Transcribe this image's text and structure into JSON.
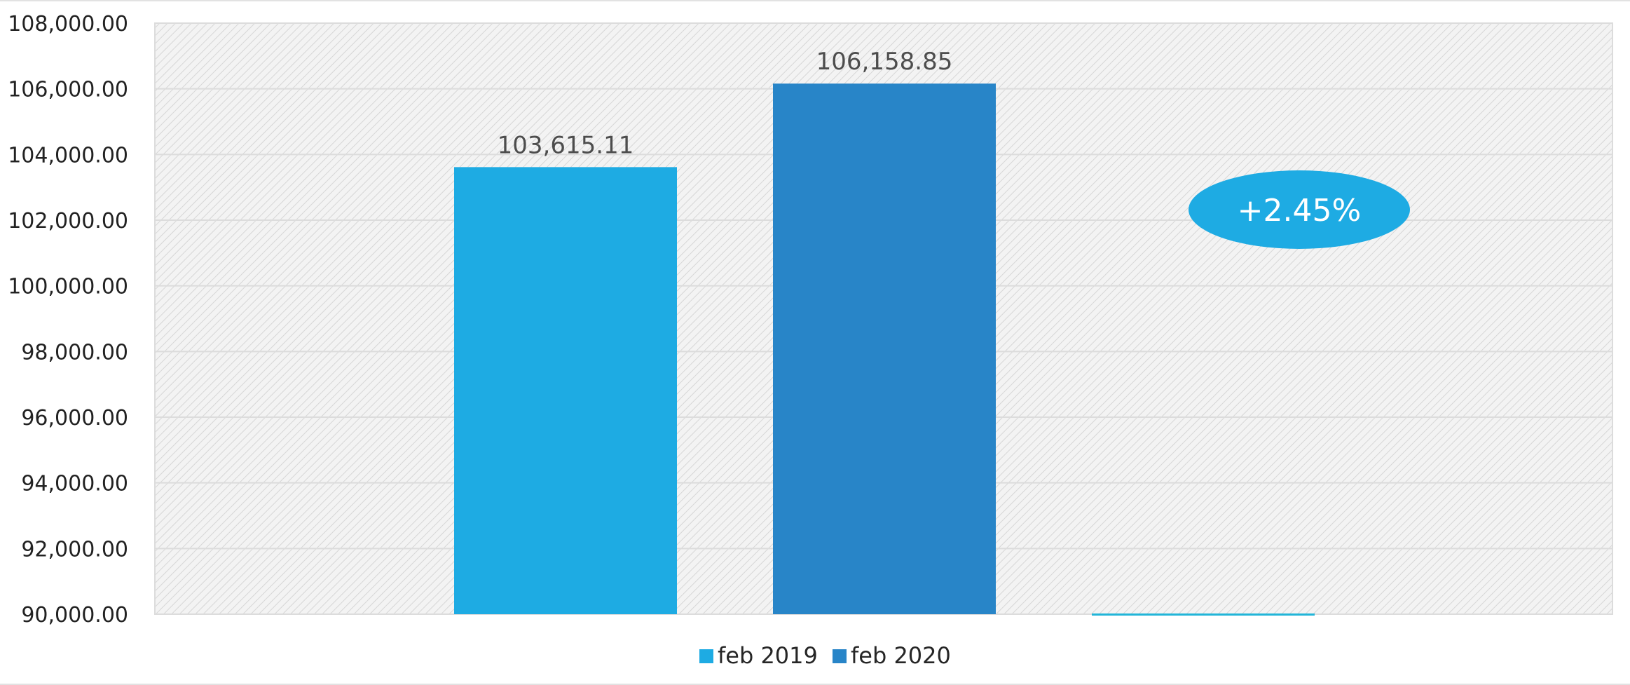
{
  "chart_data": {
    "type": "bar",
    "categories": [
      ""
    ],
    "series": [
      {
        "name": "feb 2019",
        "values": [
          103615.11
        ],
        "data_label": "103,615.11",
        "color": "#1EABE3"
      },
      {
        "name": "feb 2020",
        "values": [
          106158.85
        ],
        "data_label": "106,158.85",
        "color": "#2885C8"
      },
      {
        "name": "",
        "values": [
          90000
        ],
        "color": "#22B5D8"
      }
    ],
    "title": "",
    "xlabel": "",
    "ylabel": "",
    "ylim": [
      90000,
      108000
    ],
    "yticks": [
      "90,000.00",
      "92,000.00",
      "94,000.00",
      "96,000.00",
      "98,000.00",
      "100,000.00",
      "102,000.00",
      "104,000.00",
      "106,000.00",
      "108,000.00"
    ],
    "ytick_values": [
      90000,
      92000,
      94000,
      96000,
      98000,
      100000,
      102000,
      104000,
      106000,
      108000
    ],
    "grid": true,
    "legend_position": "bottom",
    "annotation": {
      "text": "+2.45%",
      "color": "#1EABE3"
    }
  }
}
